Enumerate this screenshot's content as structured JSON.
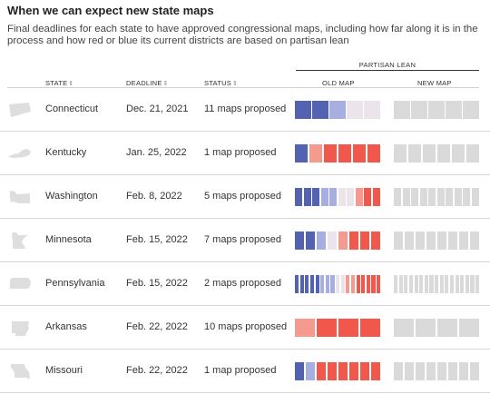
{
  "title": "When we can expect new state maps",
  "subtitle": "Final deadlines for each state to have approved congressional maps, including how far along it is in the process and how red or blue its current districts are based on partisan lean",
  "partisan_lean_label": "PARTISAN LEAN",
  "columns": {
    "state": "STATE",
    "deadline": "DEADLINE",
    "status": "STATUS",
    "old_map": "OLD MAP",
    "new_map": "NEW MAP",
    "sort_glyph": "⇕"
  },
  "colors": {
    "blue_dark": "#5462b2",
    "blue_light": "#a7aee2",
    "neutral": "#ebe4ea",
    "red_light": "#f49a8e",
    "red_dark": "#f2574c",
    "new_map_gray": "#dadada",
    "state_shape": "#dedede"
  },
  "rows": [
    {
      "state": "Connecticut",
      "deadline": "Dec. 21, 2021",
      "status": "11 maps proposed",
      "shape_icon": "connecticut-shape",
      "old_map": [
        "blue_dark",
        "blue_dark",
        "blue_light",
        "neutral",
        "neutral"
      ],
      "new_map_count": 5
    },
    {
      "state": "Kentucky",
      "deadline": "Jan. 25, 2022",
      "status": "1 map proposed",
      "shape_icon": "kentucky-shape",
      "old_map": [
        "blue_dark",
        "red_light",
        "red_dark",
        "red_dark",
        "red_dark",
        "red_dark"
      ],
      "new_map_count": 6
    },
    {
      "state": "Washington",
      "deadline": "Feb. 8, 2022",
      "status": "5 maps proposed",
      "shape_icon": "washington-shape",
      "old_map": [
        "blue_dark",
        "blue_dark",
        "blue_dark",
        "blue_light",
        "blue_light",
        "neutral",
        "neutral",
        "red_light",
        "red_dark",
        "red_dark"
      ],
      "new_map_count": 10
    },
    {
      "state": "Minnesota",
      "deadline": "Feb. 15, 2022",
      "status": "7 maps proposed",
      "shape_icon": "minnesota-shape",
      "old_map": [
        "blue_dark",
        "blue_dark",
        "blue_light",
        "neutral",
        "red_light",
        "red_dark",
        "red_dark",
        "red_dark"
      ],
      "new_map_count": 8
    },
    {
      "state": "Pennsylvania",
      "deadline": "Feb. 15, 2022",
      "status": "2 maps proposed",
      "shape_icon": "pennsylvania-shape",
      "old_map": [
        "blue_dark",
        "blue_dark",
        "blue_dark",
        "blue_dark",
        "blue_dark",
        "blue_light",
        "blue_light",
        "blue_light",
        "neutral",
        "neutral",
        "red_light",
        "red_light",
        "red_dark",
        "red_dark",
        "red_dark",
        "red_dark",
        "red_dark"
      ],
      "new_map_count": 17
    },
    {
      "state": "Arkansas",
      "deadline": "Feb. 22, 2022",
      "status": "10 maps proposed",
      "shape_icon": "arkansas-shape",
      "old_map": [
        "red_light",
        "red_dark",
        "red_dark",
        "red_dark"
      ],
      "new_map_count": 4
    },
    {
      "state": "Missouri",
      "deadline": "Feb. 22, 2022",
      "status": "1 map proposed",
      "shape_icon": "missouri-shape",
      "old_map": [
        "blue_dark",
        "blue_light",
        "red_dark",
        "red_dark",
        "red_dark",
        "red_dark",
        "red_dark",
        "red_dark"
      ],
      "new_map_count": 8
    }
  ]
}
